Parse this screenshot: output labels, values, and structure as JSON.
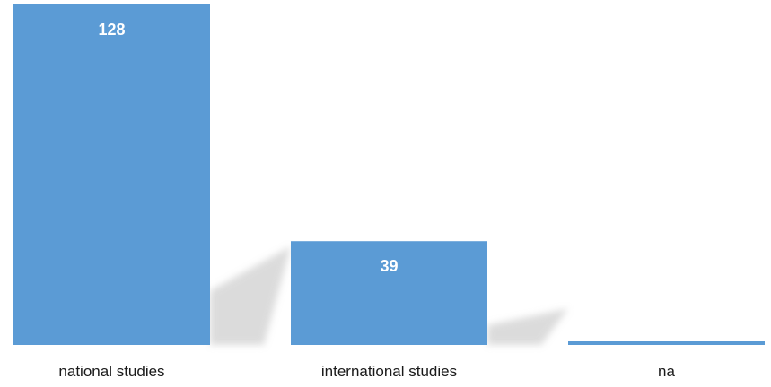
{
  "chart_data": {
    "type": "bar",
    "categories": [
      "national studies",
      "international studies",
      "na"
    ],
    "values": [
      128,
      39,
      1
    ],
    "data_labels": [
      "128",
      "39",
      ""
    ],
    "title": "",
    "xlabel": "",
    "ylabel": "",
    "ylim": [
      0,
      128
    ],
    "grid": false,
    "legend": "none",
    "bar_color": "#5B9BD5",
    "shadow": true
  }
}
